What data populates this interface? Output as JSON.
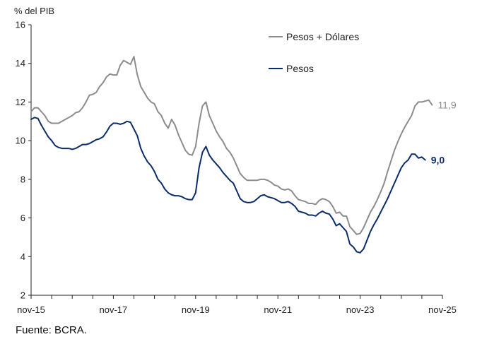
{
  "ylabel": "% del PIB",
  "source": "Fuente: BCRA.",
  "chart_data": {
    "type": "line",
    "ylabel": "% del PIB",
    "ylim": [
      2,
      16
    ],
    "yticks": [
      "2",
      "4",
      "6",
      "8",
      "10",
      "12",
      "14",
      "16"
    ],
    "xlim": [
      "2015-11",
      "2025-11"
    ],
    "xticks": [
      "nov-15",
      "nov-17",
      "nov-19",
      "nov-21",
      "nov-23",
      "nov-25"
    ],
    "grid": false,
    "legend_position": "top-right",
    "series": [
      {
        "name": "Pesos + Dólares",
        "color": "#8c8c8c",
        "end_label": "11,9",
        "points": [
          [
            "2015-11",
            11.5
          ],
          [
            "2015-12",
            11.7
          ],
          [
            "2016-01",
            11.7
          ],
          [
            "2016-02",
            11.5
          ],
          [
            "2016-03",
            11.3
          ],
          [
            "2016-04",
            11.0
          ],
          [
            "2016-05",
            10.9
          ],
          [
            "2016-06",
            10.9
          ],
          [
            "2016-07",
            10.9
          ],
          [
            "2016-08",
            11.0
          ],
          [
            "2016-09",
            11.1
          ],
          [
            "2016-10",
            11.2
          ],
          [
            "2016-11",
            11.3
          ],
          [
            "2016-12",
            11.45
          ],
          [
            "2017-01",
            11.5
          ],
          [
            "2017-02",
            11.7
          ],
          [
            "2017-03",
            12.0
          ],
          [
            "2017-04",
            12.35
          ],
          [
            "2017-05",
            12.4
          ],
          [
            "2017-06",
            12.5
          ],
          [
            "2017-07",
            12.8
          ],
          [
            "2017-08",
            13.0
          ],
          [
            "2017-09",
            13.3
          ],
          [
            "2017-10",
            13.45
          ],
          [
            "2017-11",
            13.4
          ],
          [
            "2017-12",
            13.4
          ],
          [
            "2018-01",
            13.9
          ],
          [
            "2018-02",
            14.15
          ],
          [
            "2018-03",
            14.05
          ],
          [
            "2018-04",
            13.95
          ],
          [
            "2018-05",
            14.35
          ],
          [
            "2018-06",
            13.4
          ],
          [
            "2018-07",
            12.8
          ],
          [
            "2018-08",
            12.5
          ],
          [
            "2018-09",
            12.2
          ],
          [
            "2018-10",
            12.0
          ],
          [
            "2018-11",
            11.9
          ],
          [
            "2018-12",
            11.5
          ],
          [
            "2019-01",
            11.3
          ],
          [
            "2019-02",
            10.9
          ],
          [
            "2019-03",
            10.65
          ],
          [
            "2019-04",
            11.1
          ],
          [
            "2019-05",
            10.8
          ],
          [
            "2019-06",
            10.3
          ],
          [
            "2019-07",
            9.9
          ],
          [
            "2019-08",
            9.5
          ],
          [
            "2019-09",
            9.3
          ],
          [
            "2019-10",
            9.25
          ],
          [
            "2019-11",
            9.7
          ],
          [
            "2019-12",
            10.9
          ],
          [
            "2020-01",
            11.8
          ],
          [
            "2020-02",
            12.0
          ],
          [
            "2020-03",
            11.3
          ],
          [
            "2020-04",
            10.9
          ],
          [
            "2020-05",
            10.5
          ],
          [
            "2020-06",
            10.2
          ],
          [
            "2020-07",
            9.95
          ],
          [
            "2020-08",
            9.6
          ],
          [
            "2020-09",
            9.4
          ],
          [
            "2020-10",
            9.1
          ],
          [
            "2020-11",
            8.7
          ],
          [
            "2020-12",
            8.3
          ],
          [
            "2021-01",
            8.1
          ],
          [
            "2021-02",
            7.95
          ],
          [
            "2021-03",
            7.95
          ],
          [
            "2021-04",
            7.95
          ],
          [
            "2021-05",
            7.95
          ],
          [
            "2021-06",
            8.0
          ],
          [
            "2021-07",
            8.0
          ],
          [
            "2021-08",
            7.95
          ],
          [
            "2021-09",
            7.85
          ],
          [
            "2021-10",
            7.7
          ],
          [
            "2021-11",
            7.65
          ],
          [
            "2021-12",
            7.5
          ],
          [
            "2022-01",
            7.45
          ],
          [
            "2022-02",
            7.5
          ],
          [
            "2022-03",
            7.4
          ],
          [
            "2022-04",
            7.15
          ],
          [
            "2022-05",
            6.95
          ],
          [
            "2022-06",
            6.9
          ],
          [
            "2022-07",
            6.85
          ],
          [
            "2022-08",
            6.75
          ],
          [
            "2022-09",
            6.75
          ],
          [
            "2022-10",
            6.7
          ],
          [
            "2022-11",
            6.9
          ],
          [
            "2022-12",
            7.0
          ],
          [
            "2023-01",
            6.95
          ],
          [
            "2023-02",
            6.85
          ],
          [
            "2023-03",
            6.6
          ],
          [
            "2023-04",
            6.25
          ],
          [
            "2023-05",
            6.3
          ],
          [
            "2023-06",
            6.1
          ],
          [
            "2023-07",
            6.1
          ],
          [
            "2023-08",
            5.55
          ],
          [
            "2023-09",
            5.35
          ],
          [
            "2023-10",
            5.15
          ],
          [
            "2023-11",
            5.2
          ],
          [
            "2023-12",
            5.5
          ],
          [
            "2024-01",
            5.9
          ],
          [
            "2024-02",
            6.3
          ],
          [
            "2024-03",
            6.6
          ],
          [
            "2024-04",
            6.95
          ],
          [
            "2024-05",
            7.35
          ],
          [
            "2024-06",
            7.8
          ],
          [
            "2024-07",
            8.4
          ],
          [
            "2024-08",
            8.95
          ],
          [
            "2024-09",
            9.5
          ],
          [
            "2024-10",
            9.95
          ],
          [
            "2024-11",
            10.35
          ],
          [
            "2024-12",
            10.7
          ],
          [
            "2025-01",
            11.0
          ],
          [
            "2025-02",
            11.3
          ],
          [
            "2025-03",
            11.8
          ],
          [
            "2025-04",
            12.0
          ],
          [
            "2025-05",
            12.0
          ],
          [
            "2025-06",
            12.05
          ],
          [
            "2025-07",
            12.1
          ],
          [
            "2025-08",
            11.85
          ]
        ]
      },
      {
        "name": "Pesos",
        "color": "#0b2c6b",
        "end_label": "9,0",
        "points": [
          [
            "2015-11",
            11.1
          ],
          [
            "2015-12",
            11.2
          ],
          [
            "2016-01",
            11.15
          ],
          [
            "2016-02",
            10.8
          ],
          [
            "2016-03",
            10.5
          ],
          [
            "2016-04",
            10.2
          ],
          [
            "2016-05",
            10.0
          ],
          [
            "2016-06",
            9.75
          ],
          [
            "2016-07",
            9.65
          ],
          [
            "2016-08",
            9.6
          ],
          [
            "2016-09",
            9.6
          ],
          [
            "2016-10",
            9.6
          ],
          [
            "2016-11",
            9.55
          ],
          [
            "2016-12",
            9.6
          ],
          [
            "2017-01",
            9.7
          ],
          [
            "2017-02",
            9.8
          ],
          [
            "2017-03",
            9.8
          ],
          [
            "2017-04",
            9.85
          ],
          [
            "2017-05",
            9.95
          ],
          [
            "2017-06",
            10.05
          ],
          [
            "2017-07",
            10.1
          ],
          [
            "2017-08",
            10.2
          ],
          [
            "2017-09",
            10.45
          ],
          [
            "2017-10",
            10.75
          ],
          [
            "2017-11",
            10.9
          ],
          [
            "2017-12",
            10.9
          ],
          [
            "2018-01",
            10.85
          ],
          [
            "2018-02",
            10.9
          ],
          [
            "2018-03",
            11.0
          ],
          [
            "2018-04",
            10.95
          ],
          [
            "2018-05",
            10.6
          ],
          [
            "2018-06",
            10.25
          ],
          [
            "2018-07",
            9.6
          ],
          [
            "2018-08",
            9.2
          ],
          [
            "2018-09",
            8.9
          ],
          [
            "2018-10",
            8.7
          ],
          [
            "2018-11",
            8.4
          ],
          [
            "2018-12",
            8.0
          ],
          [
            "2019-01",
            7.8
          ],
          [
            "2019-02",
            7.5
          ],
          [
            "2019-03",
            7.3
          ],
          [
            "2019-04",
            7.2
          ],
          [
            "2019-05",
            7.15
          ],
          [
            "2019-06",
            7.15
          ],
          [
            "2019-07",
            7.1
          ],
          [
            "2019-08",
            7.0
          ],
          [
            "2019-09",
            6.95
          ],
          [
            "2019-10",
            6.95
          ],
          [
            "2019-11",
            7.3
          ],
          [
            "2019-12",
            8.6
          ],
          [
            "2020-01",
            9.4
          ],
          [
            "2020-02",
            9.7
          ],
          [
            "2020-03",
            9.25
          ],
          [
            "2020-04",
            9.0
          ],
          [
            "2020-05",
            8.8
          ],
          [
            "2020-06",
            8.6
          ],
          [
            "2020-07",
            8.35
          ],
          [
            "2020-08",
            8.15
          ],
          [
            "2020-09",
            7.95
          ],
          [
            "2020-10",
            7.8
          ],
          [
            "2020-11",
            7.4
          ],
          [
            "2020-12",
            7.0
          ],
          [
            "2021-01",
            6.85
          ],
          [
            "2021-02",
            6.8
          ],
          [
            "2021-03",
            6.8
          ],
          [
            "2021-04",
            6.85
          ],
          [
            "2021-05",
            7.0
          ],
          [
            "2021-06",
            7.15
          ],
          [
            "2021-07",
            7.2
          ],
          [
            "2021-08",
            7.1
          ],
          [
            "2021-09",
            7.05
          ],
          [
            "2021-10",
            7.0
          ],
          [
            "2021-11",
            6.9
          ],
          [
            "2021-12",
            6.8
          ],
          [
            "2022-01",
            6.8
          ],
          [
            "2022-02",
            6.85
          ],
          [
            "2022-03",
            6.75
          ],
          [
            "2022-04",
            6.6
          ],
          [
            "2022-05",
            6.35
          ],
          [
            "2022-06",
            6.3
          ],
          [
            "2022-07",
            6.25
          ],
          [
            "2022-08",
            6.15
          ],
          [
            "2022-09",
            6.15
          ],
          [
            "2022-10",
            6.1
          ],
          [
            "2022-11",
            6.25
          ],
          [
            "2022-12",
            6.35
          ],
          [
            "2023-01",
            6.25
          ],
          [
            "2023-02",
            6.2
          ],
          [
            "2023-03",
            5.95
          ],
          [
            "2023-04",
            5.6
          ],
          [
            "2023-05",
            5.7
          ],
          [
            "2023-06",
            5.5
          ],
          [
            "2023-07",
            5.3
          ],
          [
            "2023-08",
            4.65
          ],
          [
            "2023-09",
            4.5
          ],
          [
            "2023-10",
            4.25
          ],
          [
            "2023-11",
            4.2
          ],
          [
            "2023-12",
            4.4
          ],
          [
            "2024-01",
            4.85
          ],
          [
            "2024-02",
            5.3
          ],
          [
            "2024-03",
            5.65
          ],
          [
            "2024-04",
            5.95
          ],
          [
            "2024-05",
            6.3
          ],
          [
            "2024-06",
            6.65
          ],
          [
            "2024-07",
            7.0
          ],
          [
            "2024-08",
            7.4
          ],
          [
            "2024-09",
            7.8
          ],
          [
            "2024-10",
            8.2
          ],
          [
            "2024-11",
            8.6
          ],
          [
            "2024-12",
            8.85
          ],
          [
            "2025-01",
            9.0
          ],
          [
            "2025-02",
            9.3
          ],
          [
            "2025-03",
            9.3
          ],
          [
            "2025-04",
            9.1
          ],
          [
            "2025-05",
            9.15
          ],
          [
            "2025-06",
            9.0
          ]
        ]
      }
    ]
  }
}
